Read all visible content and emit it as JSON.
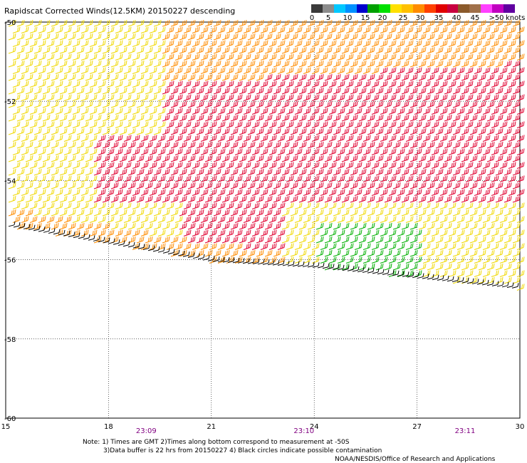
{
  "title": "Rapidscat Corrected Winds(12.5KM) 20150227 descending",
  "colorbar": {
    "labels": [
      "0",
      "5",
      "10",
      "15",
      "20",
      "25",
      "30",
      "35",
      "40",
      "45",
      ">50"
    ],
    "unit": "knots",
    "colors": [
      "#3a3a3a",
      "#8c8c8c",
      "#00c8ff",
      "#0090ff",
      "#0000cd",
      "#00a000",
      "#00e000",
      "#ffe000",
      "#ffc000",
      "#ff8c00",
      "#ff4000",
      "#e00000",
      "#c80040",
      "#8b5a2b",
      "#a0704a",
      "#ff40ff",
      "#c000c0",
      "#6000a0"
    ]
  },
  "axes": {
    "x_ticks": [
      "15",
      "18",
      "21",
      "24",
      "27",
      "30"
    ],
    "y_ticks": [
      "-50",
      "-52",
      "-54",
      "-56",
      "-58",
      "-60"
    ]
  },
  "chart_data": {
    "type": "wind-barbs",
    "title": "Rapidscat Corrected Winds(12.5KM) 20150227 descending",
    "x_range": [
      15,
      30
    ],
    "y_range": [
      -60,
      -50
    ],
    "x_ticks": [
      15,
      18,
      21,
      24,
      27,
      30
    ],
    "y_ticks": [
      -50,
      -52,
      -54,
      -56,
      -58,
      -60
    ],
    "grid": true,
    "time_labels": [
      {
        "x": 19.1,
        "label": "23:09"
      },
      {
        "x": 23.7,
        "label": "23:10"
      },
      {
        "x": 28.4,
        "label": "23:11"
      }
    ],
    "regions": [
      {
        "lon_range": [
          15,
          19
        ],
        "lat_range": [
          -54,
          -50
        ],
        "speed_kt": 22,
        "description": "yellow"
      },
      {
        "lon_range": [
          18,
          24
        ],
        "lat_range": [
          -53,
          -50
        ],
        "speed_kt": 28,
        "description": "orange"
      },
      {
        "lon_range": [
          20,
          30
        ],
        "lat_range": [
          -54,
          -51
        ],
        "speed_kt": 33,
        "description": "red"
      },
      {
        "lon_range": [
          23,
          30
        ],
        "lat_range": [
          -55.5,
          -54.5
        ],
        "speed_kt": 20,
        "description": "yellow"
      },
      {
        "lon_range": [
          24,
          27
        ],
        "lat_range": [
          -56.3,
          -55.2
        ],
        "speed_kt": 17,
        "description": "green"
      }
    ]
  },
  "footer": {
    "note_line1": "Note: 1) Times are GMT 2)Times along bottom correspond to measurement at -50S",
    "note_line2": "3)Data buffer is 22 hrs from 20150227 4) Black circles indicate possible contamination",
    "credit": "NOAA/NESDIS/Office of Research and Applications"
  }
}
